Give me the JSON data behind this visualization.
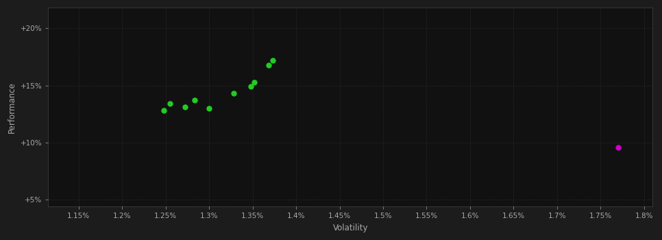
{
  "background_color": "#1c1c1c",
  "plot_bg_color": "#111111",
  "grid_color": "#333333",
  "xlabel": "Volatility",
  "ylabel": "Performance",
  "xlim": [
    0.01115,
    0.0181
  ],
  "ylim": [
    0.044,
    0.218
  ],
  "xtick_vals": [
    0.0115,
    0.012,
    0.0125,
    0.013,
    0.0135,
    0.014,
    0.0145,
    0.015,
    0.0155,
    0.016,
    0.0165,
    0.017,
    0.0175,
    0.018
  ],
  "ytick_vals": [
    0.05,
    0.1,
    0.15,
    0.2
  ],
  "green_points": [
    [
      0.01248,
      0.128
    ],
    [
      0.01255,
      0.134
    ],
    [
      0.01272,
      0.131
    ],
    [
      0.01283,
      0.137
    ],
    [
      0.013,
      0.13
    ],
    [
      0.01328,
      0.143
    ],
    [
      0.01348,
      0.149
    ],
    [
      0.01352,
      0.153
    ],
    [
      0.01368,
      0.168
    ],
    [
      0.01373,
      0.172
    ]
  ],
  "magenta_points": [
    [
      0.0177,
      0.096
    ]
  ],
  "green_color": "#22cc22",
  "magenta_color": "#cc00cc",
  "point_size": 25,
  "magenta_size": 25,
  "tick_label_color": "#aaaaaa",
  "axis_label_color": "#aaaaaa",
  "grid_linestyle": "--",
  "grid_linewidth": 0.5,
  "grid_alpha": 0.6,
  "tick_fontsize": 7.5,
  "label_fontsize": 8.5
}
